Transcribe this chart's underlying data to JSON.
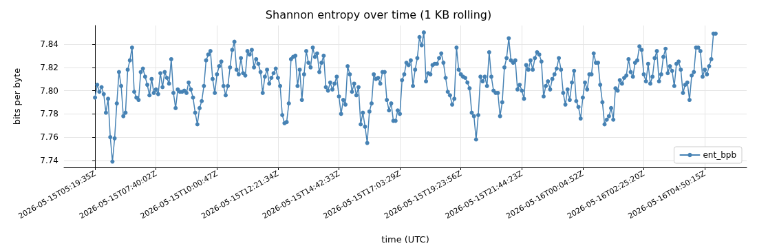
{
  "chart_data": {
    "type": "line",
    "title": "Shannon entropy over time (1 KB rolling)",
    "xlabel": "time (UTC)",
    "ylabel": "bits per byte",
    "categories": [
      "2026-05-15T05:19:35Z",
      null,
      null,
      null,
      null,
      null,
      null,
      null,
      null,
      null,
      null,
      null,
      null,
      null,
      null,
      null,
      null,
      null,
      null,
      null,
      null,
      null,
      null,
      null,
      null,
      null,
      null,
      null,
      "2026-05-15T07:40:02Z",
      null,
      null,
      null,
      null,
      null,
      null,
      null,
      null,
      null,
      null,
      null,
      null,
      null,
      null,
      null,
      null,
      null,
      null,
      null,
      null,
      null,
      null,
      null,
      null,
      null,
      null,
      null,
      "2026-05-15T10:00:47Z",
      null,
      null,
      null,
      null,
      null,
      null,
      null,
      null,
      null,
      null,
      null,
      null,
      null,
      null,
      null,
      null,
      null,
      null,
      null,
      null,
      null,
      null,
      null,
      null,
      null,
      null,
      null,
      "2026-05-15T12:21:34Z",
      null,
      null,
      null,
      null,
      null,
      null,
      null,
      null,
      null,
      null,
      null,
      null,
      null,
      null,
      null,
      null,
      null,
      null,
      null,
      null,
      null,
      null,
      null,
      null,
      null,
      null,
      null,
      "2026-05-15T14:42:33Z",
      null,
      null,
      null,
      null,
      null,
      null,
      null,
      null,
      null,
      null,
      null,
      null,
      null,
      null,
      null,
      null,
      null,
      null,
      null,
      null,
      null,
      null,
      null,
      null,
      null,
      null,
      null,
      "2026-05-15T17:03:29Z",
      null,
      null,
      null,
      null,
      null,
      null,
      null,
      null,
      null,
      null,
      null,
      null,
      null,
      null,
      null,
      null,
      null,
      null,
      null,
      null,
      null,
      null,
      null,
      null,
      null,
      null,
      null,
      "2026-05-15T19:23:56Z",
      null,
      null,
      null,
      null,
      null,
      null,
      null,
      null,
      null,
      null,
      null,
      null,
      null,
      null,
      null,
      null,
      null,
      null,
      null,
      null,
      null,
      null,
      null,
      null,
      null,
      null,
      null,
      "2026-05-15T21:44:23Z",
      null,
      null,
      null,
      null,
      null,
      null,
      null,
      null,
      null,
      null,
      null,
      null,
      null,
      null,
      null,
      null,
      null,
      null,
      null,
      null,
      null,
      null,
      null,
      null,
      null,
      null,
      null,
      "2026-05-16T00:04:52Z",
      null,
      null,
      null,
      null,
      null,
      null,
      null,
      null,
      null,
      null,
      null,
      null,
      null,
      null,
      null,
      null,
      null,
      null,
      null,
      null,
      null,
      null,
      null,
      null,
      null,
      null,
      null,
      "2026-05-16T02:25:20Z",
      null,
      null,
      null,
      null,
      null,
      null,
      null,
      null,
      null,
      null,
      null,
      null,
      null,
      null,
      null,
      null,
      null,
      null,
      null,
      null,
      null,
      null,
      null,
      null,
      null,
      null,
      null,
      "2026-05-16T04:50:15Z",
      null,
      null,
      null,
      null,
      null
    ],
    "series": [
      {
        "name": "ent_bpb",
        "color": "#4682b4",
        "values": [
          7.794,
          7.805,
          7.799,
          7.803,
          7.797,
          7.781,
          7.793,
          7.76,
          7.739,
          7.759,
          7.789,
          7.816,
          7.804,
          7.778,
          7.781,
          7.818,
          7.826,
          7.837,
          7.799,
          7.794,
          7.792,
          7.816,
          7.819,
          7.812,
          7.805,
          7.796,
          7.81,
          7.798,
          7.801,
          7.797,
          7.815,
          7.803,
          7.816,
          7.811,
          7.806,
          7.827,
          7.798,
          7.785,
          7.801,
          7.799,
          7.799,
          7.8,
          7.798,
          7.807,
          7.801,
          7.794,
          7.781,
          7.771,
          7.785,
          7.791,
          7.804,
          7.826,
          7.831,
          7.834,
          7.81,
          7.798,
          7.814,
          7.821,
          7.825,
          7.804,
          7.796,
          7.804,
          7.82,
          7.835,
          7.842,
          7.818,
          7.814,
          7.828,
          7.815,
          7.813,
          7.834,
          7.831,
          7.835,
          7.82,
          7.827,
          7.823,
          7.816,
          7.798,
          7.812,
          7.818,
          7.806,
          7.811,
          7.815,
          7.819,
          7.811,
          7.804,
          7.779,
          7.772,
          7.773,
          7.789,
          7.827,
          7.829,
          7.83,
          7.804,
          7.818,
          7.792,
          7.814,
          7.834,
          7.824,
          7.82,
          7.837,
          7.829,
          7.832,
          7.816,
          7.824,
          7.83,
          7.803,
          7.8,
          7.807,
          7.801,
          7.806,
          7.812,
          7.795,
          7.78,
          7.792,
          7.788,
          7.821,
          7.814,
          7.799,
          7.806,
          7.796,
          7.803,
          7.771,
          7.781,
          7.769,
          7.755,
          7.782,
          7.789,
          7.814,
          7.81,
          7.811,
          7.806,
          7.816,
          7.816,
          7.792,
          7.783,
          7.789,
          7.774,
          7.774,
          7.783,
          7.78,
          7.809,
          7.814,
          7.824,
          7.822,
          7.826,
          7.804,
          7.818,
          7.828,
          7.846,
          7.839,
          7.85,
          7.808,
          7.815,
          7.814,
          7.822,
          7.823,
          7.823,
          7.828,
          7.832,
          7.824,
          7.811,
          7.799,
          7.796,
          7.788,
          7.793,
          7.837,
          7.818,
          7.814,
          7.812,
          7.811,
          7.807,
          7.802,
          7.781,
          7.778,
          7.758,
          7.779,
          7.812,
          7.808,
          7.812,
          7.804,
          7.833,
          7.812,
          7.8,
          7.798,
          7.798,
          7.778,
          7.79,
          7.82,
          7.828,
          7.845,
          7.826,
          7.824,
          7.826,
          7.801,
          7.805,
          7.8,
          7.793,
          7.822,
          7.818,
          7.826,
          7.818,
          7.828,
          7.833,
          7.831,
          7.825,
          7.795,
          7.804,
          7.808,
          7.801,
          7.81,
          7.814,
          7.819,
          7.828,
          7.818,
          7.798,
          7.788,
          7.801,
          7.792,
          7.807,
          7.817,
          7.791,
          7.786,
          7.776,
          7.794,
          7.807,
          7.801,
          7.814,
          7.814,
          7.832,
          7.824,
          7.824,
          7.805,
          7.79,
          7.771,
          7.775,
          7.778,
          7.785,
          7.775,
          7.802,
          7.8,
          7.809,
          7.806,
          7.811,
          7.813,
          7.827,
          7.816,
          7.812,
          7.824,
          7.826,
          7.838,
          7.835,
          7.814,
          7.808,
          7.823,
          7.806,
          7.812,
          7.828,
          7.834,
          7.808,
          7.814,
          7.829,
          7.836,
          7.815,
          7.821,
          7.817,
          7.804,
          7.823,
          7.825,
          7.818,
          7.798,
          7.805,
          7.807,
          7.792,
          7.813,
          7.816,
          7.837,
          7.837,
          7.834,
          7.812,
          7.818,
          7.814,
          7.821,
          7.827,
          7.849,
          7.849
        ]
      }
    ],
    "ylim": [
      7.734,
      7.856
    ],
    "yticks": [
      {
        "value": 7.74,
        "label": "7.74"
      },
      {
        "value": 7.76,
        "label": "7.76"
      },
      {
        "value": 7.78,
        "label": "7.78"
      },
      {
        "value": 7.8,
        "label": "7.80"
      },
      {
        "value": 7.82,
        "label": "7.82"
      },
      {
        "value": 7.84,
        "label": "7.84"
      }
    ],
    "grid": true,
    "legend": "bottom right",
    "marker": "circle",
    "line_style": "solid"
  }
}
